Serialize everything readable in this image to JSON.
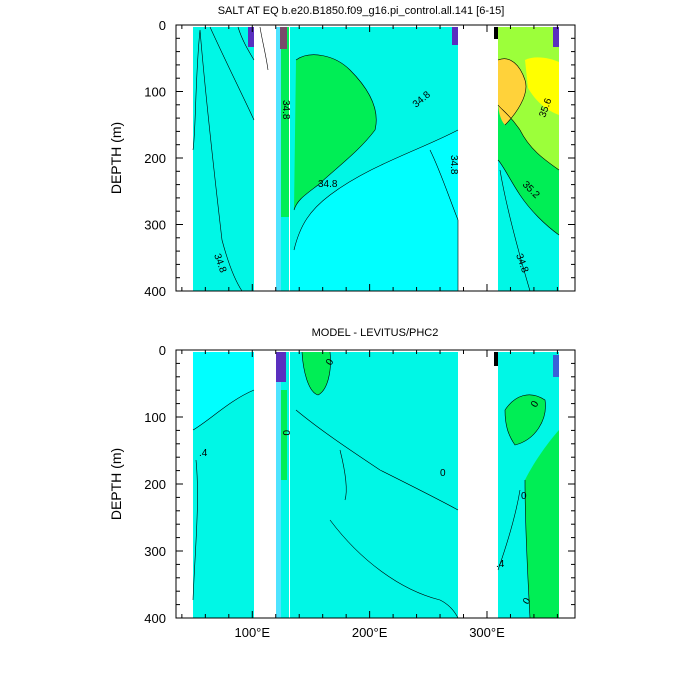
{
  "colors": {
    "aqua": "#00f7e6",
    "cyan": "#00ffff",
    "light_blue": "#4fe3ff",
    "green": "#00ee55",
    "yellowgreen": "#9cff3a",
    "yellow": "#ffff00",
    "gold": "#ffd23a",
    "violet": "#5a2fbf",
    "contour_line": "#000000"
  },
  "chart_data": [
    {
      "type": "heatmap",
      "title": "SALT AT EQ b.e20.B1850.f09_g16.pi_control.all.141 [6-15]",
      "xlabel": "",
      "ylabel": "DEPTH (m)",
      "x_tick_labels": [
        "100°E",
        "200°E",
        "300°E"
      ],
      "x_ticks": [
        100,
        200,
        300
      ],
      "xlim": [
        35,
        375
      ],
      "y_tick_labels": [
        "0",
        "100",
        "200",
        "300",
        "400"
      ],
      "y_ticks": [
        0,
        100,
        200,
        300,
        400
      ],
      "ylim": [
        0,
        400
      ],
      "y_reversed": true,
      "contour_labels": [
        "34.8",
        "34.8",
        "34.8",
        "34.8",
        "34.8",
        "35.6",
        "35.2",
        "34.8"
      ],
      "regions": [
        {
          "color": "aqua",
          "x": [
            44,
            97
          ],
          "depth": [
            0,
            400
          ]
        },
        {
          "color": "light_blue",
          "x": [
            118,
            122
          ],
          "depth": [
            0,
            400
          ]
        },
        {
          "color": "green",
          "x": [
            122,
            128
          ],
          "depth": [
            0,
            280
          ]
        },
        {
          "color": "cyan",
          "x": [
            130,
            278
          ],
          "depth": [
            0,
            400
          ]
        },
        {
          "color": "aqua",
          "x": [
            140,
            278
          ],
          "depth": [
            0,
            210
          ]
        },
        {
          "color": "aqua",
          "x": [
            316,
            370
          ],
          "depth": [
            0,
            400
          ]
        },
        {
          "color": "yellowgreen",
          "x": [
            316,
            370
          ],
          "depth": [
            0,
            230
          ]
        },
        {
          "color": "gold",
          "x": [
            320,
            350
          ],
          "depth": [
            60,
            140
          ]
        },
        {
          "color": "yellow",
          "x": [
            340,
            370
          ],
          "depth": [
            50,
            110
          ]
        }
      ]
    },
    {
      "type": "heatmap",
      "title": "MODEL - LEVITUS/PHC2",
      "xlabel": "",
      "ylabel": "DEPTH (m)",
      "x_tick_labels": [
        "100°E",
        "200°E",
        "300°E"
      ],
      "x_ticks": [
        100,
        200,
        300
      ],
      "xlim": [
        35,
        375
      ],
      "y_tick_labels": [
        "0",
        "100",
        "200",
        "300",
        "400"
      ],
      "y_ticks": [
        0,
        100,
        200,
        300,
        400
      ],
      "ylim": [
        0,
        400
      ],
      "y_reversed": true,
      "contour_labels": [
        "0",
        "0",
        ".4",
        "0",
        "0",
        "0",
        ".4",
        "0"
      ],
      "regions": [
        {
          "color": "aqua",
          "x": [
            44,
            97
          ],
          "depth": [
            0,
            400
          ]
        },
        {
          "color": "light_blue",
          "x": [
            118,
            122
          ],
          "depth": [
            0,
            400
          ]
        },
        {
          "color": "green",
          "x": [
            122,
            128
          ],
          "depth": [
            40,
            180
          ]
        },
        {
          "color": "aqua",
          "x": [
            130,
            278
          ],
          "depth": [
            0,
            400
          ]
        },
        {
          "color": "green",
          "x": [
            140,
            170
          ],
          "depth": [
            0,
            90
          ]
        },
        {
          "color": "aqua",
          "x": [
            316,
            370
          ],
          "depth": [
            0,
            400
          ]
        },
        {
          "color": "green",
          "x": [
            335,
            370
          ],
          "depth": [
            120,
            400
          ]
        },
        {
          "color": "green",
          "x": [
            330,
            350
          ],
          "depth": [
            60,
            140
          ]
        }
      ]
    }
  ]
}
